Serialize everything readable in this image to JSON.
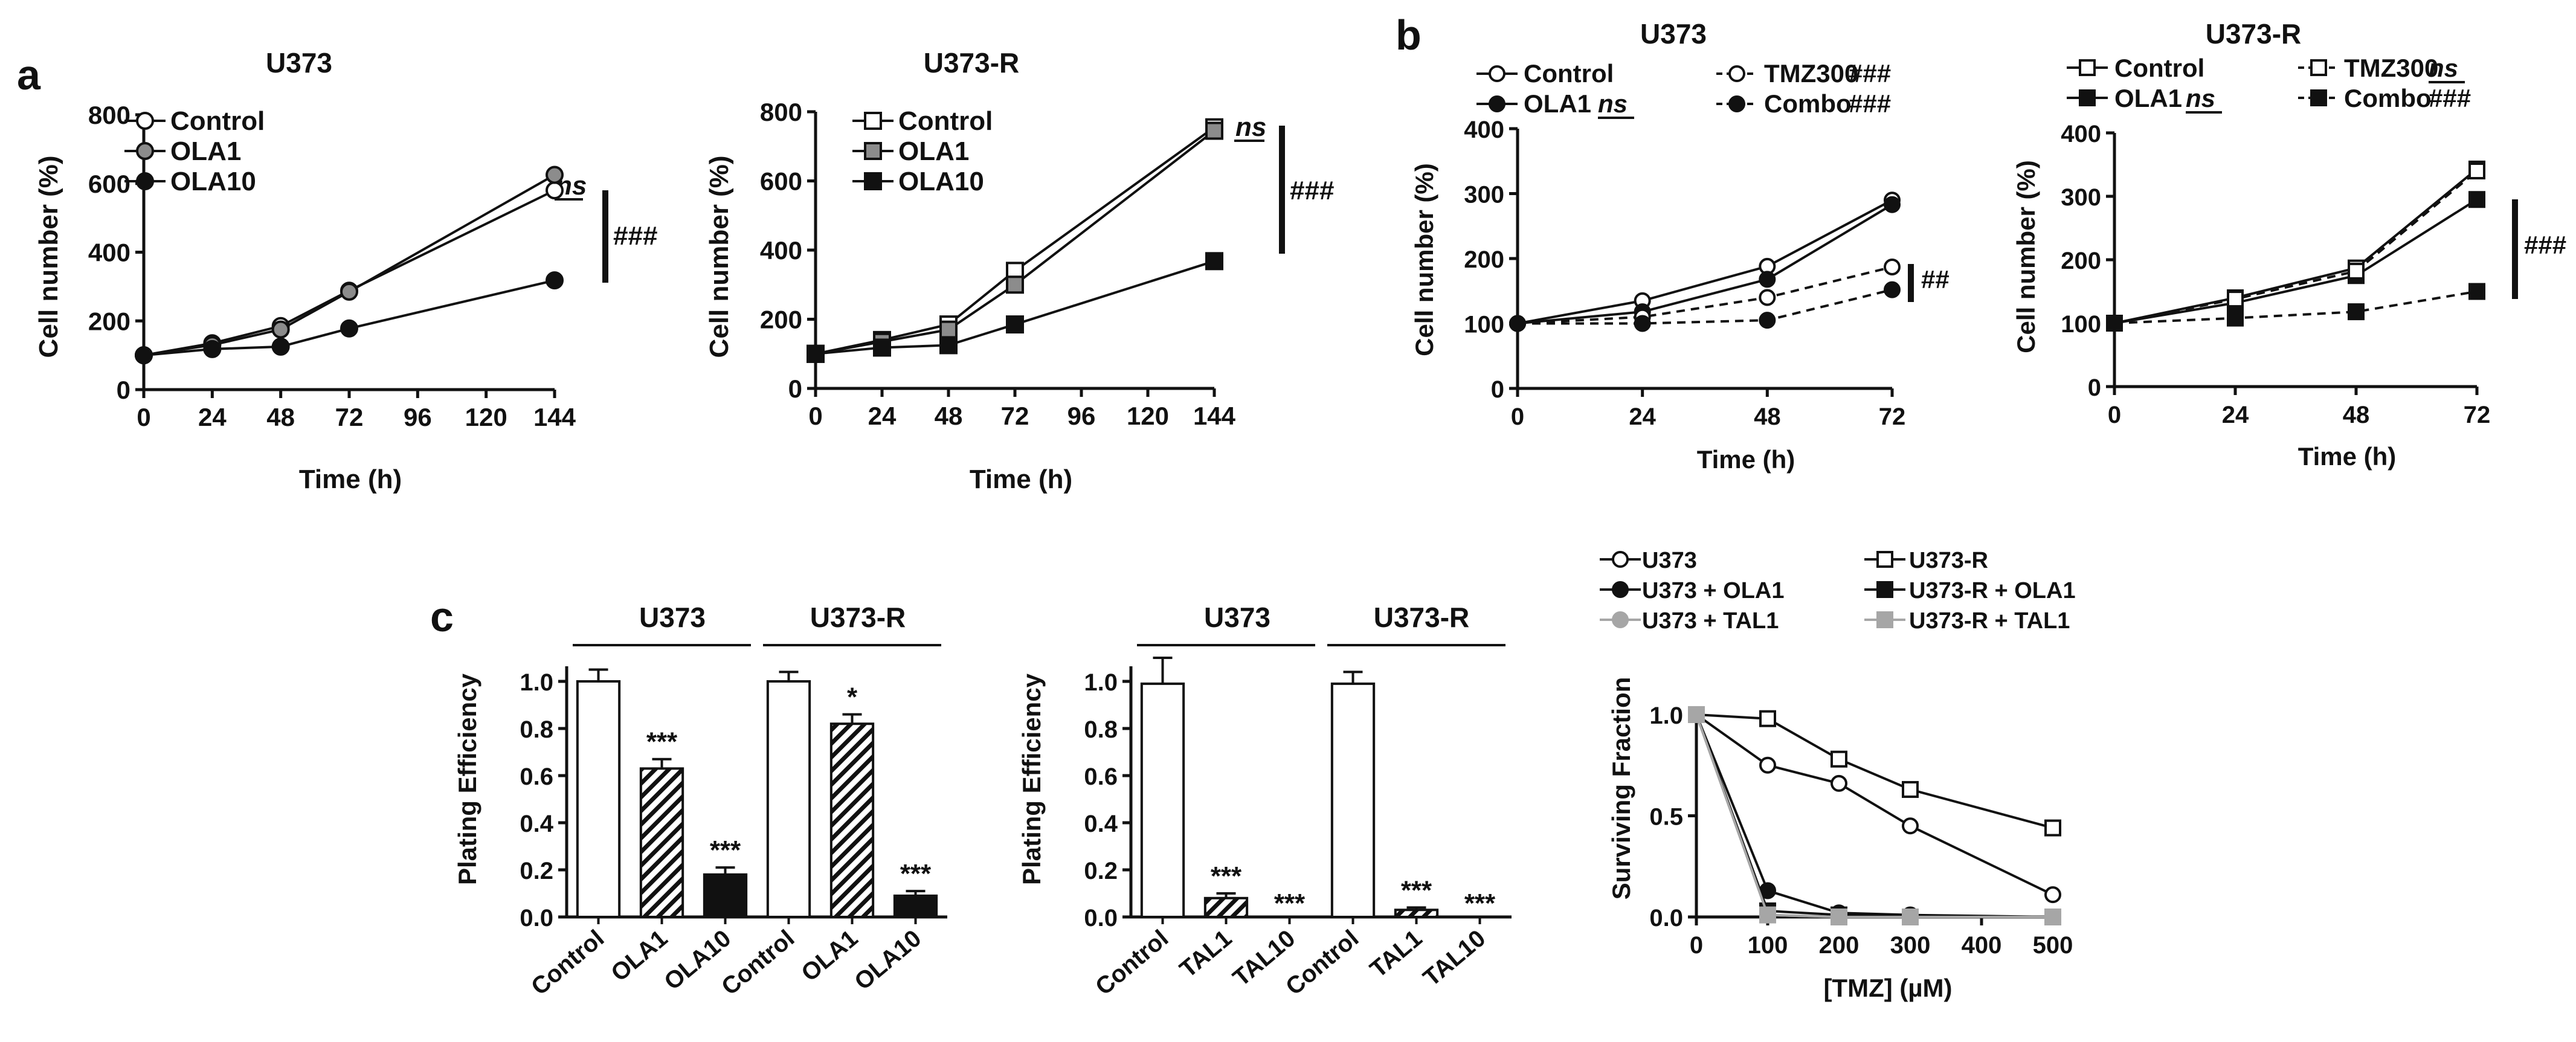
{
  "panel_labels": [
    "a",
    "b",
    "c"
  ],
  "chart_data": [
    {
      "id": "a1",
      "type": "line",
      "title": "U373",
      "xlabel": "Time (h)",
      "ylabel": "Cell number (%)",
      "xlim": [
        0,
        144
      ],
      "ylim": [
        0,
        800
      ],
      "xticks": [
        0,
        24,
        48,
        72,
        96,
        120,
        144
      ],
      "yticks": [
        0,
        200,
        400,
        600,
        800
      ],
      "x": [
        0,
        24,
        48,
        72,
        144
      ],
      "series": [
        {
          "name": "Control",
          "values": [
            100,
            135,
            185,
            288,
            580
          ],
          "marker": "circle",
          "fill": "#ffffff",
          "dash": false
        },
        {
          "name": "OLA1",
          "values": [
            100,
            130,
            175,
            285,
            625
          ],
          "marker": "circle",
          "fill": "#8c8c8c",
          "dash": false
        },
        {
          "name": "OLA10",
          "values": [
            100,
            118,
            125,
            178,
            318
          ],
          "marker": "circle",
          "fill": "#111111",
          "dash": false
        }
      ],
      "annotations": [
        {
          "text": "ns",
          "style": "italic-underline",
          "anchor": "Control/OLA1 at 144 h"
        },
        {
          "text": "###",
          "style": "bracket",
          "anchor": "Control vs OLA10 at 144 h"
        }
      ]
    },
    {
      "id": "a2",
      "type": "line",
      "title": "U373-R",
      "xlabel": "Time (h)",
      "ylabel": "Cell number (%)",
      "xlim": [
        0,
        144
      ],
      "ylim": [
        0,
        800
      ],
      "xticks": [
        0,
        24,
        48,
        72,
        96,
        120,
        144
      ],
      "yticks": [
        0,
        200,
        400,
        600,
        800
      ],
      "x": [
        0,
        24,
        48,
        72,
        144
      ],
      "series": [
        {
          "name": "Control",
          "values": [
            100,
            140,
            185,
            340,
            755
          ],
          "marker": "square",
          "fill": "#ffffff",
          "dash": false
        },
        {
          "name": "OLA1",
          "values": [
            100,
            135,
            170,
            300,
            745
          ],
          "marker": "square",
          "fill": "#8c8c8c",
          "dash": false
        },
        {
          "name": "OLA10",
          "values": [
            100,
            118,
            125,
            185,
            368
          ],
          "marker": "square",
          "fill": "#111111",
          "dash": false
        }
      ],
      "annotations": [
        {
          "text": "ns",
          "style": "italic-underline",
          "anchor": "Control/OLA1 at 144 h"
        },
        {
          "text": "###",
          "style": "bracket",
          "anchor": "Control vs OLA10 at 144 h"
        }
      ]
    },
    {
      "id": "b1",
      "type": "line",
      "title": "U373",
      "xlabel": "Time (h)",
      "ylabel": "Cell number (%)",
      "xlim": [
        0,
        72
      ],
      "ylim": [
        0,
        400
      ],
      "xticks": [
        0,
        24,
        48,
        72
      ],
      "yticks": [
        0,
        100,
        200,
        300,
        400
      ],
      "x": [
        0,
        24,
        48,
        72
      ],
      "series": [
        {
          "name": "Control",
          "values": [
            100,
            135,
            188,
            290
          ],
          "marker": "circle",
          "fill": "#ffffff",
          "dash": false
        },
        {
          "name": "OLA1",
          "values": [
            100,
            118,
            168,
            283
          ],
          "marker": "circle",
          "fill": "#111111",
          "dash": false
        },
        {
          "name": "TMZ300",
          "values": [
            100,
            110,
            140,
            187
          ],
          "marker": "circle",
          "fill": "#ffffff",
          "dash": true
        },
        {
          "name": "Combo",
          "values": [
            100,
            100,
            105,
            152
          ],
          "marker": "circle",
          "fill": "#111111",
          "dash": true
        }
      ],
      "legend_suffix": {
        "Control": "",
        "OLA1": "ns",
        "TMZ300": "###",
        "Combo": "###"
      },
      "annotations": [
        {
          "text": "##",
          "style": "bracket",
          "anchor": "TMZ300 vs Combo at 72 h"
        }
      ]
    },
    {
      "id": "b2",
      "type": "line",
      "title": "U373-R",
      "xlabel": "Time (h)",
      "ylabel": "Cell number (%)",
      "xlim": [
        0,
        72
      ],
      "ylim": [
        0,
        400
      ],
      "xticks": [
        0,
        24,
        48,
        72
      ],
      "yticks": [
        0,
        100,
        200,
        300,
        400
      ],
      "x": [
        0,
        24,
        48,
        72
      ],
      "series": [
        {
          "name": "Control",
          "values": [
            100,
            140,
            187,
            343
          ],
          "marker": "square",
          "fill": "#ffffff",
          "dash": false
        },
        {
          "name": "OLA1",
          "values": [
            100,
            132,
            175,
            295
          ],
          "marker": "square",
          "fill": "#111111",
          "dash": false
        },
        {
          "name": "TMZ300",
          "values": [
            100,
            138,
            182,
            340
          ],
          "marker": "square",
          "fill": "#ffffff",
          "dash": true
        },
        {
          "name": "Combo",
          "values": [
            100,
            108,
            118,
            150
          ],
          "marker": "square",
          "fill": "#111111",
          "dash": true
        }
      ],
      "legend_suffix": {
        "Control": "",
        "OLA1": "ns",
        "TMZ300": "ns",
        "Combo": "###"
      },
      "annotations": [
        {
          "text": "###",
          "style": "bracket",
          "anchor": "Control vs Combo at 72 h"
        }
      ]
    },
    {
      "id": "c1",
      "type": "bar",
      "ylabel": "Plating Efficiency",
      "ylim": [
        0,
        1.0
      ],
      "yticks": [
        0.0,
        0.2,
        0.4,
        0.6,
        0.8,
        1.0
      ],
      "categories": [
        "Control",
        "OLA1",
        "OLA10",
        "Control",
        "OLA1",
        "OLA10"
      ],
      "values": [
        1.0,
        0.63,
        0.18,
        1.0,
        0.82,
        0.09
      ],
      "errors": [
        0.05,
        0.04,
        0.03,
        0.04,
        0.04,
        0.02
      ],
      "fills": [
        "white",
        "hatch",
        "black",
        "white",
        "hatch",
        "black"
      ],
      "significance": [
        "",
        "***",
        "***",
        "",
        "*",
        "***"
      ],
      "groups": [
        {
          "label": "U373",
          "start": 0,
          "end": 2
        },
        {
          "label": "U373-R",
          "start": 3,
          "end": 5
        }
      ]
    },
    {
      "id": "c2",
      "type": "bar",
      "ylabel": "Plating Efficiency",
      "ylim": [
        0,
        1.0
      ],
      "yticks": [
        0.0,
        0.2,
        0.4,
        0.6,
        0.8,
        1.0
      ],
      "categories": [
        "Control",
        "TAL1",
        "TAL10",
        "Control",
        "TAL1",
        "TAL10"
      ],
      "values": [
        0.99,
        0.08,
        0.0,
        0.99,
        0.03,
        0.0
      ],
      "errors": [
        0.11,
        0.02,
        0.0,
        0.05,
        0.01,
        0.0
      ],
      "fills": [
        "white",
        "hatch",
        "black",
        "white",
        "hatch",
        "black"
      ],
      "significance": [
        "",
        "***",
        "***",
        "",
        "***",
        "***"
      ],
      "groups": [
        {
          "label": "U373",
          "start": 0,
          "end": 2
        },
        {
          "label": "U373-R",
          "start": 3,
          "end": 5
        }
      ]
    },
    {
      "id": "c3",
      "type": "line",
      "xlabel": "[TMZ] (µM)",
      "ylabel": "Surviving Fraction",
      "xlim": [
        0,
        500
      ],
      "ylim": [
        0,
        1.0
      ],
      "xticks": [
        0,
        100,
        200,
        300,
        400,
        500
      ],
      "yticks": [
        0.0,
        0.5,
        1.0
      ],
      "ytick_labels": [
        "0.0",
        "0.5",
        "1.0"
      ],
      "series": [
        {
          "name": "U373",
          "x": [
            0,
            100,
            200,
            300,
            500
          ],
          "values": [
            1.0,
            0.75,
            0.66,
            0.45,
            0.11
          ],
          "marker": "circle",
          "fill": "#ffffff",
          "color": "#111111"
        },
        {
          "name": "U373 + OLA1",
          "x": [
            0,
            100,
            200,
            300,
            500
          ],
          "values": [
            1.0,
            0.13,
            0.02,
            0.01,
            0.0
          ],
          "marker": "circle",
          "fill": "#111111",
          "color": "#111111"
        },
        {
          "name": "U373 + TAL1",
          "x": [
            0,
            100,
            200,
            300,
            500
          ],
          "values": [
            1.0,
            0.01,
            0.0,
            0.0,
            0.0
          ],
          "marker": "circle",
          "fill": "#a6a6a6",
          "color": "#a6a6a6"
        },
        {
          "name": "U373-R",
          "x": [
            0,
            100,
            200,
            300,
            500
          ],
          "values": [
            1.0,
            0.98,
            0.78,
            0.63,
            0.44
          ],
          "marker": "square",
          "fill": "#ffffff",
          "color": "#111111"
        },
        {
          "name": "U373-R + OLA1",
          "x": [
            0,
            100,
            200,
            300,
            500
          ],
          "values": [
            1.0,
            0.03,
            0.01,
            0.0,
            0.0
          ],
          "marker": "square",
          "fill": "#111111",
          "color": "#111111"
        },
        {
          "name": "U373-R + TAL1",
          "x": [
            0,
            100,
            200,
            300,
            500
          ],
          "values": [
            1.0,
            0.01,
            0.0,
            0.0,
            0.0
          ],
          "marker": "square",
          "fill": "#a6a6a6",
          "color": "#a6a6a6"
        }
      ]
    }
  ]
}
